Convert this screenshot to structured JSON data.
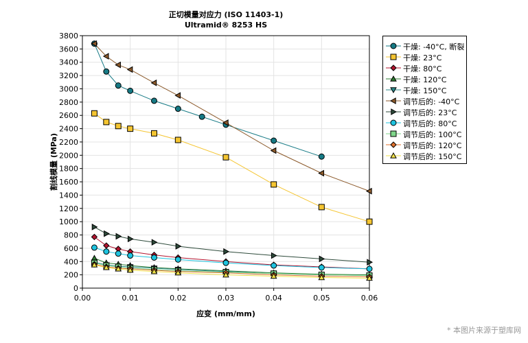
{
  "chart_data": {
    "type": "line",
    "title": "正切模量对应力 (ISO 11403-1)",
    "subtitle": "Ultramid® 8253 HS",
    "xlabel": "应变 (mm/mm)",
    "ylabel": "割线模量 (MPa)",
    "xlim": [
      0,
      0.06
    ],
    "ylim": [
      0,
      3800
    ],
    "xticks": [
      "0.00",
      "0.01",
      "0.02",
      "0.03",
      "0.04",
      "0.05",
      "0.06"
    ],
    "yticks": [
      "0",
      "200",
      "400",
      "600",
      "800",
      "1000",
      "1200",
      "1400",
      "1600",
      "1800",
      "2000",
      "2200",
      "2400",
      "2600",
      "2800",
      "3000",
      "3200",
      "3400",
      "3600",
      "3800"
    ],
    "grid": true,
    "legend_position": "right",
    "series": [
      {
        "name": "干燥: -40°C, 断裂",
        "color": "#167a85",
        "marker": "circle",
        "x": [
          0.0025,
          0.005,
          0.0075,
          0.01,
          0.015,
          0.02,
          0.025,
          0.03,
          0.04,
          0.05
        ],
        "y": [
          3680,
          3260,
          3050,
          2970,
          2820,
          2700,
          2580,
          2460,
          2220,
          1980
        ]
      },
      {
        "name": "干燥: 23°C",
        "color": "#f5c531",
        "marker": "square",
        "x": [
          0.0025,
          0.005,
          0.0075,
          0.01,
          0.015,
          0.02,
          0.03,
          0.04,
          0.05,
          0.06
        ],
        "y": [
          2630,
          2500,
          2440,
          2400,
          2330,
          2230,
          1970,
          1560,
          1220,
          1000
        ]
      },
      {
        "name": "干燥: 80°C",
        "color": "#b3132e",
        "marker": "diamond",
        "x": [
          0.0025,
          0.005,
          0.0075,
          0.01,
          0.015,
          0.02,
          0.03,
          0.04,
          0.05,
          0.06
        ],
        "y": [
          770,
          640,
          590,
          550,
          500,
          460,
          400,
          350,
          320,
          290
        ]
      },
      {
        "name": "干燥: 120°C",
        "color": "#2e7d32",
        "marker": "triangle-up",
        "x": [
          0.0025,
          0.005,
          0.0075,
          0.01,
          0.015,
          0.02,
          0.03,
          0.04,
          0.05,
          0.06
        ],
        "y": [
          450,
          380,
          360,
          340,
          310,
          290,
          260,
          230,
          210,
          200
        ]
      },
      {
        "name": "干燥: 150°C",
        "color": "#2b8a8a",
        "marker": "triangle-down",
        "x": [
          0.0025,
          0.005,
          0.0075,
          0.01,
          0.015,
          0.02,
          0.03,
          0.04,
          0.05,
          0.06
        ],
        "y": [
          390,
          350,
          330,
          320,
          300,
          280,
          250,
          220,
          200,
          190
        ]
      },
      {
        "name": "调节后的: -40°C",
        "color": "#8c5a2b",
        "marker": "triangle-left",
        "x": [
          0.0025,
          0.005,
          0.0075,
          0.01,
          0.015,
          0.02,
          0.03,
          0.04,
          0.05,
          0.06
        ],
        "y": [
          3680,
          3490,
          3360,
          3290,
          3090,
          2900,
          2490,
          2070,
          1730,
          1460
        ]
      },
      {
        "name": "调节后的: 23°C",
        "color": "#2d4a3a",
        "marker": "triangle-right",
        "x": [
          0.0025,
          0.005,
          0.0075,
          0.01,
          0.015,
          0.02,
          0.03,
          0.04,
          0.05,
          0.06
        ],
        "y": [
          920,
          820,
          780,
          740,
          690,
          630,
          550,
          490,
          440,
          390
        ]
      },
      {
        "name": "调节后的: 80°C",
        "color": "#1ec3df",
        "marker": "circle",
        "x": [
          0.0025,
          0.005,
          0.0075,
          0.01,
          0.015,
          0.02,
          0.03,
          0.04,
          0.05,
          0.06
        ],
        "y": [
          610,
          550,
          520,
          490,
          460,
          430,
          380,
          340,
          310,
          290
        ]
      },
      {
        "name": "调节后的: 100°C",
        "color": "#7fd68a",
        "marker": "square",
        "x": [
          0.0025,
          0.005,
          0.0075,
          0.01,
          0.015,
          0.02,
          0.03,
          0.04,
          0.05,
          0.06
        ],
        "y": [
          380,
          340,
          320,
          300,
          280,
          260,
          240,
          220,
          200,
          190
        ]
      },
      {
        "name": "调节后的: 120°C",
        "color": "#e0712c",
        "marker": "diamond",
        "x": [
          0.0025,
          0.005,
          0.0075,
          0.01,
          0.015,
          0.02,
          0.03,
          0.04,
          0.05,
          0.06
        ],
        "y": [
          360,
          320,
          300,
          290,
          270,
          250,
          230,
          200,
          180,
          170
        ]
      },
      {
        "name": "调节后的: 150°C",
        "color": "#f2e24a",
        "marker": "triangle-up",
        "x": [
          0.0025,
          0.005,
          0.0075,
          0.01,
          0.015,
          0.02,
          0.03,
          0.04,
          0.05,
          0.06
        ],
        "y": [
          350,
          310,
          290,
          270,
          250,
          230,
          200,
          180,
          160,
          150
        ]
      }
    ]
  },
  "watermark": "* 本图片来源于塑库网"
}
